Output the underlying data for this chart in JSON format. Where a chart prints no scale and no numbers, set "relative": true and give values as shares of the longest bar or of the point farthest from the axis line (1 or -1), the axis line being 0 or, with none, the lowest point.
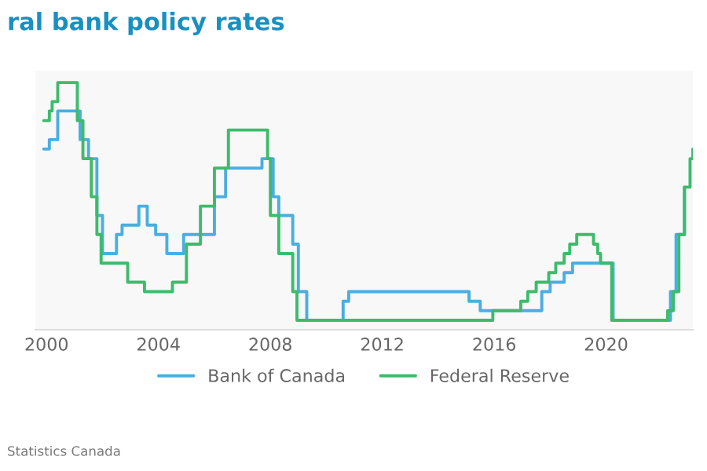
{
  "chart_data": {
    "type": "step",
    "title": "ral bank policy rates",
    "relative": true,
    "xlim": [
      1999.6,
      2023.1
    ],
    "xticks": [
      2000,
      2004,
      2008,
      2012,
      2016,
      2020
    ],
    "legend": "bottom",
    "grid": false,
    "annotations": [
      "Statistics Canada"
    ],
    "series": [
      {
        "name": "Bank of Canada",
        "color": "#4aaee0",
        "x": [
          1999.9,
          2000.1,
          2000.4,
          2001.0,
          2001.2,
          2001.5,
          2001.8,
          2002.0,
          2002.2,
          2002.5,
          2002.7,
          2003.2,
          2003.3,
          2003.6,
          2003.9,
          2004.3,
          2004.6,
          2004.9,
          2005.7,
          2006.0,
          2006.4,
          2007.5,
          2007.7,
          2007.9,
          2008.1,
          2008.3,
          2008.8,
          2009.0,
          2009.3,
          2010.4,
          2010.6,
          2010.8,
          2015.0,
          2015.1,
          2015.5,
          2017.5,
          2017.7,
          2018.0,
          2018.5,
          2018.8,
          2020.2,
          2020.25,
          2022.1,
          2022.3,
          2022.5,
          2022.8
        ],
        "values": [
          0.731,
          0.769,
          0.885,
          0.885,
          0.769,
          0.692,
          0.462,
          0.308,
          0.308,
          0.385,
          0.423,
          0.423,
          0.5,
          0.423,
          0.385,
          0.308,
          0.308,
          0.385,
          0.385,
          0.538,
          0.654,
          0.654,
          0.692,
          0.692,
          0.538,
          0.462,
          0.346,
          0.154,
          0.038,
          0.038,
          0.115,
          0.154,
          0.154,
          0.115,
          0.077,
          0.077,
          0.154,
          0.192,
          0.231,
          0.269,
          0.269,
          0.038,
          0.038,
          0.154,
          0.385,
          0.577
        ]
      },
      {
        "name": "Federal Reserve",
        "color": "#3dbb6b",
        "x": [
          1999.9,
          2000.1,
          2000.2,
          2000.4,
          2001.0,
          2001.1,
          2001.3,
          2001.6,
          2001.8,
          2001.95,
          2002.9,
          2003.5,
          2004.5,
          2005.0,
          2005.5,
          2006.0,
          2006.5,
          2007.7,
          2007.9,
          2008.0,
          2008.3,
          2008.8,
          2008.95,
          2015.95,
          2016.95,
          2017.2,
          2017.5,
          2017.95,
          2018.2,
          2018.5,
          2018.7,
          2018.95,
          2019.55,
          2019.7,
          2019.8,
          2020.2,
          2022.2,
          2022.4,
          2022.6,
          2022.8,
          2023.0,
          2023.1
        ],
        "values": [
          0.846,
          0.885,
          0.923,
          1,
          1,
          0.846,
          0.692,
          0.538,
          0.385,
          0.269,
          0.192,
          0.154,
          0.192,
          0.346,
          0.5,
          0.654,
          0.808,
          0.808,
          0.692,
          0.462,
          0.308,
          0.154,
          0.038,
          0.077,
          0.115,
          0.154,
          0.192,
          0.231,
          0.269,
          0.308,
          0.346,
          0.385,
          0.346,
          0.308,
          0.269,
          0.038,
          0.077,
          0.154,
          0.385,
          0.577,
          0.692,
          0.731
        ]
      }
    ]
  }
}
